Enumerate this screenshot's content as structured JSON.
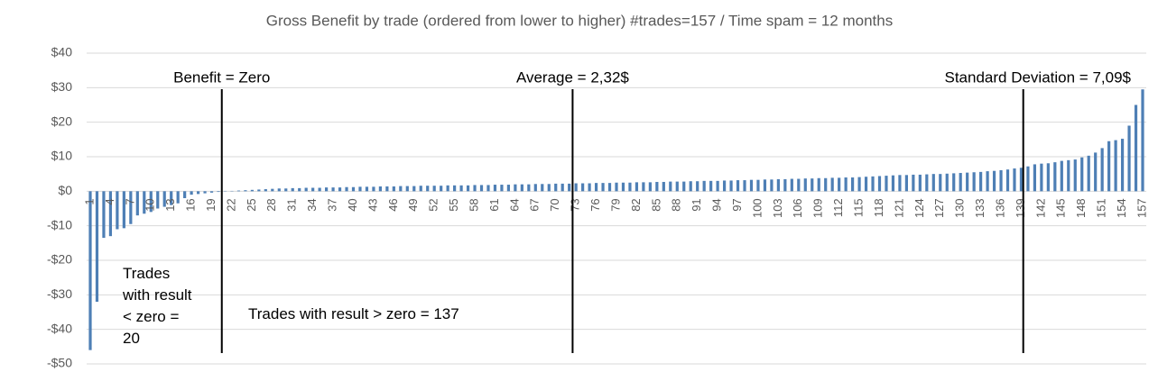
{
  "chart_data": {
    "type": "bar",
    "title": "Gross Benefit by trade (ordered from lower to higher) #trades=157 / Time spam = 12 months",
    "categories": [
      1,
      null,
      null,
      4,
      null,
      null,
      7,
      null,
      null,
      10,
      null,
      null,
      13,
      null,
      null,
      16,
      null,
      null,
      19,
      null,
      null,
      22,
      null,
      null,
      25,
      null,
      null,
      28,
      null,
      null,
      31,
      null,
      null,
      34,
      null,
      null,
      37,
      null,
      null,
      40,
      null,
      null,
      43,
      null,
      null,
      46,
      null,
      null,
      49,
      null,
      null,
      52,
      null,
      null,
      55,
      null,
      null,
      58,
      null,
      null,
      61,
      null,
      null,
      64,
      null,
      null,
      67,
      null,
      null,
      70,
      null,
      null,
      73,
      null,
      null,
      76,
      null,
      null,
      79,
      null,
      null,
      82,
      null,
      null,
      85,
      null,
      null,
      88,
      null,
      null,
      91,
      null,
      null,
      94,
      null,
      null,
      97,
      null,
      null,
      100,
      null,
      null,
      103,
      null,
      null,
      106,
      null,
      null,
      109,
      null,
      null,
      112,
      null,
      null,
      115,
      null,
      null,
      118,
      null,
      null,
      121,
      null,
      null,
      124,
      null,
      null,
      127,
      null,
      null,
      130,
      null,
      null,
      133,
      null,
      null,
      136,
      null,
      null,
      139,
      null,
      null,
      142,
      null,
      null,
      145,
      null,
      null,
      148,
      null,
      null,
      151,
      null,
      null,
      154,
      null,
      null,
      157
    ],
    "values": [
      -46,
      -32,
      -13.5,
      -13,
      -11,
      -10.7,
      -9.5,
      -7,
      -6.5,
      -6,
      -5,
      -4.5,
      -4,
      -3.5,
      -2,
      -1,
      -0.8,
      -0.6,
      -0.4,
      -0.2,
      0.1,
      0.1,
      0.2,
      0.3,
      0.4,
      0.5,
      0.6,
      0.7,
      0.8,
      0.8,
      0.9,
      0.9,
      1.0,
      1.0,
      1.0,
      1.1,
      1.1,
      1.1,
      1.2,
      1.2,
      1.3,
      1.3,
      1.3,
      1.4,
      1.4,
      1.4,
      1.5,
      1.5,
      1.5,
      1.6,
      1.6,
      1.6,
      1.6,
      1.7,
      1.7,
      1.7,
      1.7,
      1.8,
      1.8,
      1.8,
      1.9,
      1.9,
      1.9,
      2.0,
      2.0,
      2.0,
      2.1,
      2.1,
      2.1,
      2.2,
      2.2,
      2.2,
      2.3,
      2.3,
      2.3,
      2.4,
      2.4,
      2.4,
      2.5,
      2.5,
      2.5,
      2.6,
      2.6,
      2.6,
      2.7,
      2.7,
      2.8,
      2.8,
      2.8,
      2.9,
      2.9,
      3.0,
      3.0,
      3.0,
      3.1,
      3.1,
      3.2,
      3.2,
      3.3,
      3.3,
      3.4,
      3.4,
      3.5,
      3.5,
      3.6,
      3.6,
      3.7,
      3.7,
      3.8,
      3.8,
      3.9,
      3.9,
      4.0,
      4.0,
      4.1,
      4.2,
      4.3,
      4.4,
      4.5,
      4.6,
      4.7,
      4.7,
      4.8,
      4.8,
      4.9,
      5.0,
      5.0,
      5.1,
      5.2,
      5.3,
      5.4,
      5.5,
      5.6,
      5.8,
      5.9,
      6.1,
      6.3,
      6.6,
      6.8,
      7.2,
      7.8,
      8.0,
      8.1,
      8.4,
      8.8,
      9.0,
      9.2,
      9.8,
      10.3,
      11.2,
      12.5,
      14.5,
      14.8,
      15.2,
      19.0,
      25.0,
      29.5
    ],
    "color": "#4e7fb5",
    "ylim": [
      -50,
      40
    ],
    "yticks": [
      {
        "value": -50,
        "label": "-$50"
      },
      {
        "value": -40,
        "label": "-$40"
      },
      {
        "value": -30,
        "label": "-$30"
      },
      {
        "value": -20,
        "label": "-$20"
      },
      {
        "value": -10,
        "label": "-$10"
      },
      {
        "value": 0,
        "label": "$0"
      },
      {
        "value": 10,
        "label": "$10"
      },
      {
        "value": 20,
        "label": "$20"
      },
      {
        "value": 30,
        "label": "$30"
      },
      {
        "value": 40,
        "label": "$40"
      }
    ],
    "grid": true,
    "annotations": [
      {
        "text": "Benefit = Zero",
        "x": 20.5
      },
      {
        "text": "Average = 2,32$",
        "x": 72.5
      },
      {
        "text": "Standard Deviation = 7,09$",
        "x": 139.3
      }
    ],
    "text_boxes": [
      "Trades with result < zero = 20",
      "Trades with result > zero = 137"
    ]
  }
}
